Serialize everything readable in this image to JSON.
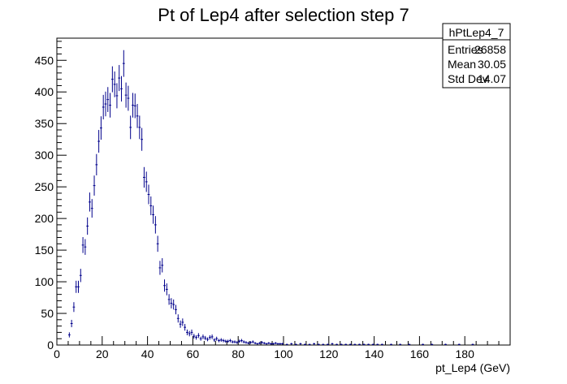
{
  "chart_data": {
    "type": "scatter",
    "style": "histogram-error-bars",
    "title": "Pt of Lep4 after selection step 7",
    "xlabel": "pt_Lep4  (GeV)",
    "ylabel": "",
    "xlim": [
      0,
      200
    ],
    "ylim": [
      0,
      485
    ],
    "bin_width": 1,
    "x_ticks": [
      0,
      20,
      40,
      60,
      80,
      100,
      120,
      140,
      160,
      180
    ],
    "y_ticks": [
      0,
      50,
      100,
      150,
      200,
      250,
      300,
      350,
      400,
      450
    ],
    "stats": {
      "name": "hPtLep4_7",
      "rows": [
        {
          "label": "Entries",
          "value": "26858"
        },
        {
          "label": "Mean",
          "value": "30.05"
        },
        {
          "label": "Std Dev",
          "value": "14.07"
        }
      ]
    },
    "series": [
      {
        "color": "#00008b",
        "x": [
          5.5,
          6.5,
          7.5,
          8.5,
          9.5,
          10.5,
          11.5,
          12.5,
          13.5,
          14.5,
          15.5,
          16.5,
          17.5,
          18.5,
          19.5,
          20.5,
          21.5,
          22.5,
          23.5,
          24.5,
          25.5,
          26.5,
          27.5,
          28.5,
          29.5,
          30.5,
          31.5,
          32.5,
          33.5,
          34.5,
          35.5,
          36.5,
          37.5,
          38.5,
          39.5,
          40.5,
          41.5,
          42.5,
          43.5,
          44.5,
          45.5,
          46.5,
          47.5,
          48.5,
          49.5,
          50.5,
          51.5,
          52.5,
          53.5,
          54.5,
          55.5,
          56.5,
          57.5,
          58.5,
          59.5,
          60.5,
          61.5,
          62.5,
          63.5,
          64.5,
          65.5,
          66.5,
          67.5,
          68.5,
          69.5,
          70.5,
          71.5,
          72.5,
          73.5,
          74.5,
          75.5,
          76.5,
          77.5,
          78.5,
          79.5,
          80.5,
          81.5,
          82.5,
          83.5,
          84.5,
          85.5,
          86.5,
          87.5,
          88.5,
          89.5,
          90.5,
          91.5,
          92.5,
          93.5,
          94.5,
          95.5,
          96.5,
          97.5,
          98.5,
          99.5,
          101.5,
          103.5,
          105.5,
          107.5,
          109.5,
          111.5,
          113.5,
          115.5,
          117.5,
          119.5,
          121.5,
          123.5,
          125.5,
          127.5,
          129.5,
          131.5,
          133.5,
          135.5,
          137.5,
          139.5,
          141.5,
          143.5,
          147.5,
          151.5,
          155.5,
          161.5,
          165.5,
          171.5,
          177.5,
          183.5
        ],
        "y": [
          16,
          34,
          60,
          92,
          92,
          110,
          158,
          155,
          188,
          226,
          216,
          252,
          285,
          322,
          343,
          376,
          381,
          388,
          379,
          420,
          412,
          394,
          422,
          405,
          445,
          395,
          390,
          344,
          379,
          378,
          362,
          344,
          325,
          265,
          258,
          238,
          220,
          206,
          190,
          160,
          122,
          126,
          94,
          88,
          72,
          66,
          64,
          56,
          42,
          33,
          36,
          28,
          20,
          18,
          20,
          14,
          12,
          15,
          10,
          13,
          11,
          9,
          12,
          13,
          8,
          10,
          7,
          8,
          7,
          6,
          6,
          7,
          5,
          5,
          4,
          6,
          7,
          5,
          4,
          3,
          4,
          5,
          3,
          2,
          3,
          4,
          3,
          2,
          3,
          2,
          2,
          3,
          2,
          2,
          2,
          1,
          2,
          1,
          2,
          1,
          1,
          2,
          1,
          1,
          1,
          2,
          1,
          1,
          1,
          1,
          1,
          1,
          1,
          1,
          1,
          1,
          1,
          1,
          1,
          1,
          1,
          1,
          1,
          1,
          1
        ]
      }
    ]
  }
}
